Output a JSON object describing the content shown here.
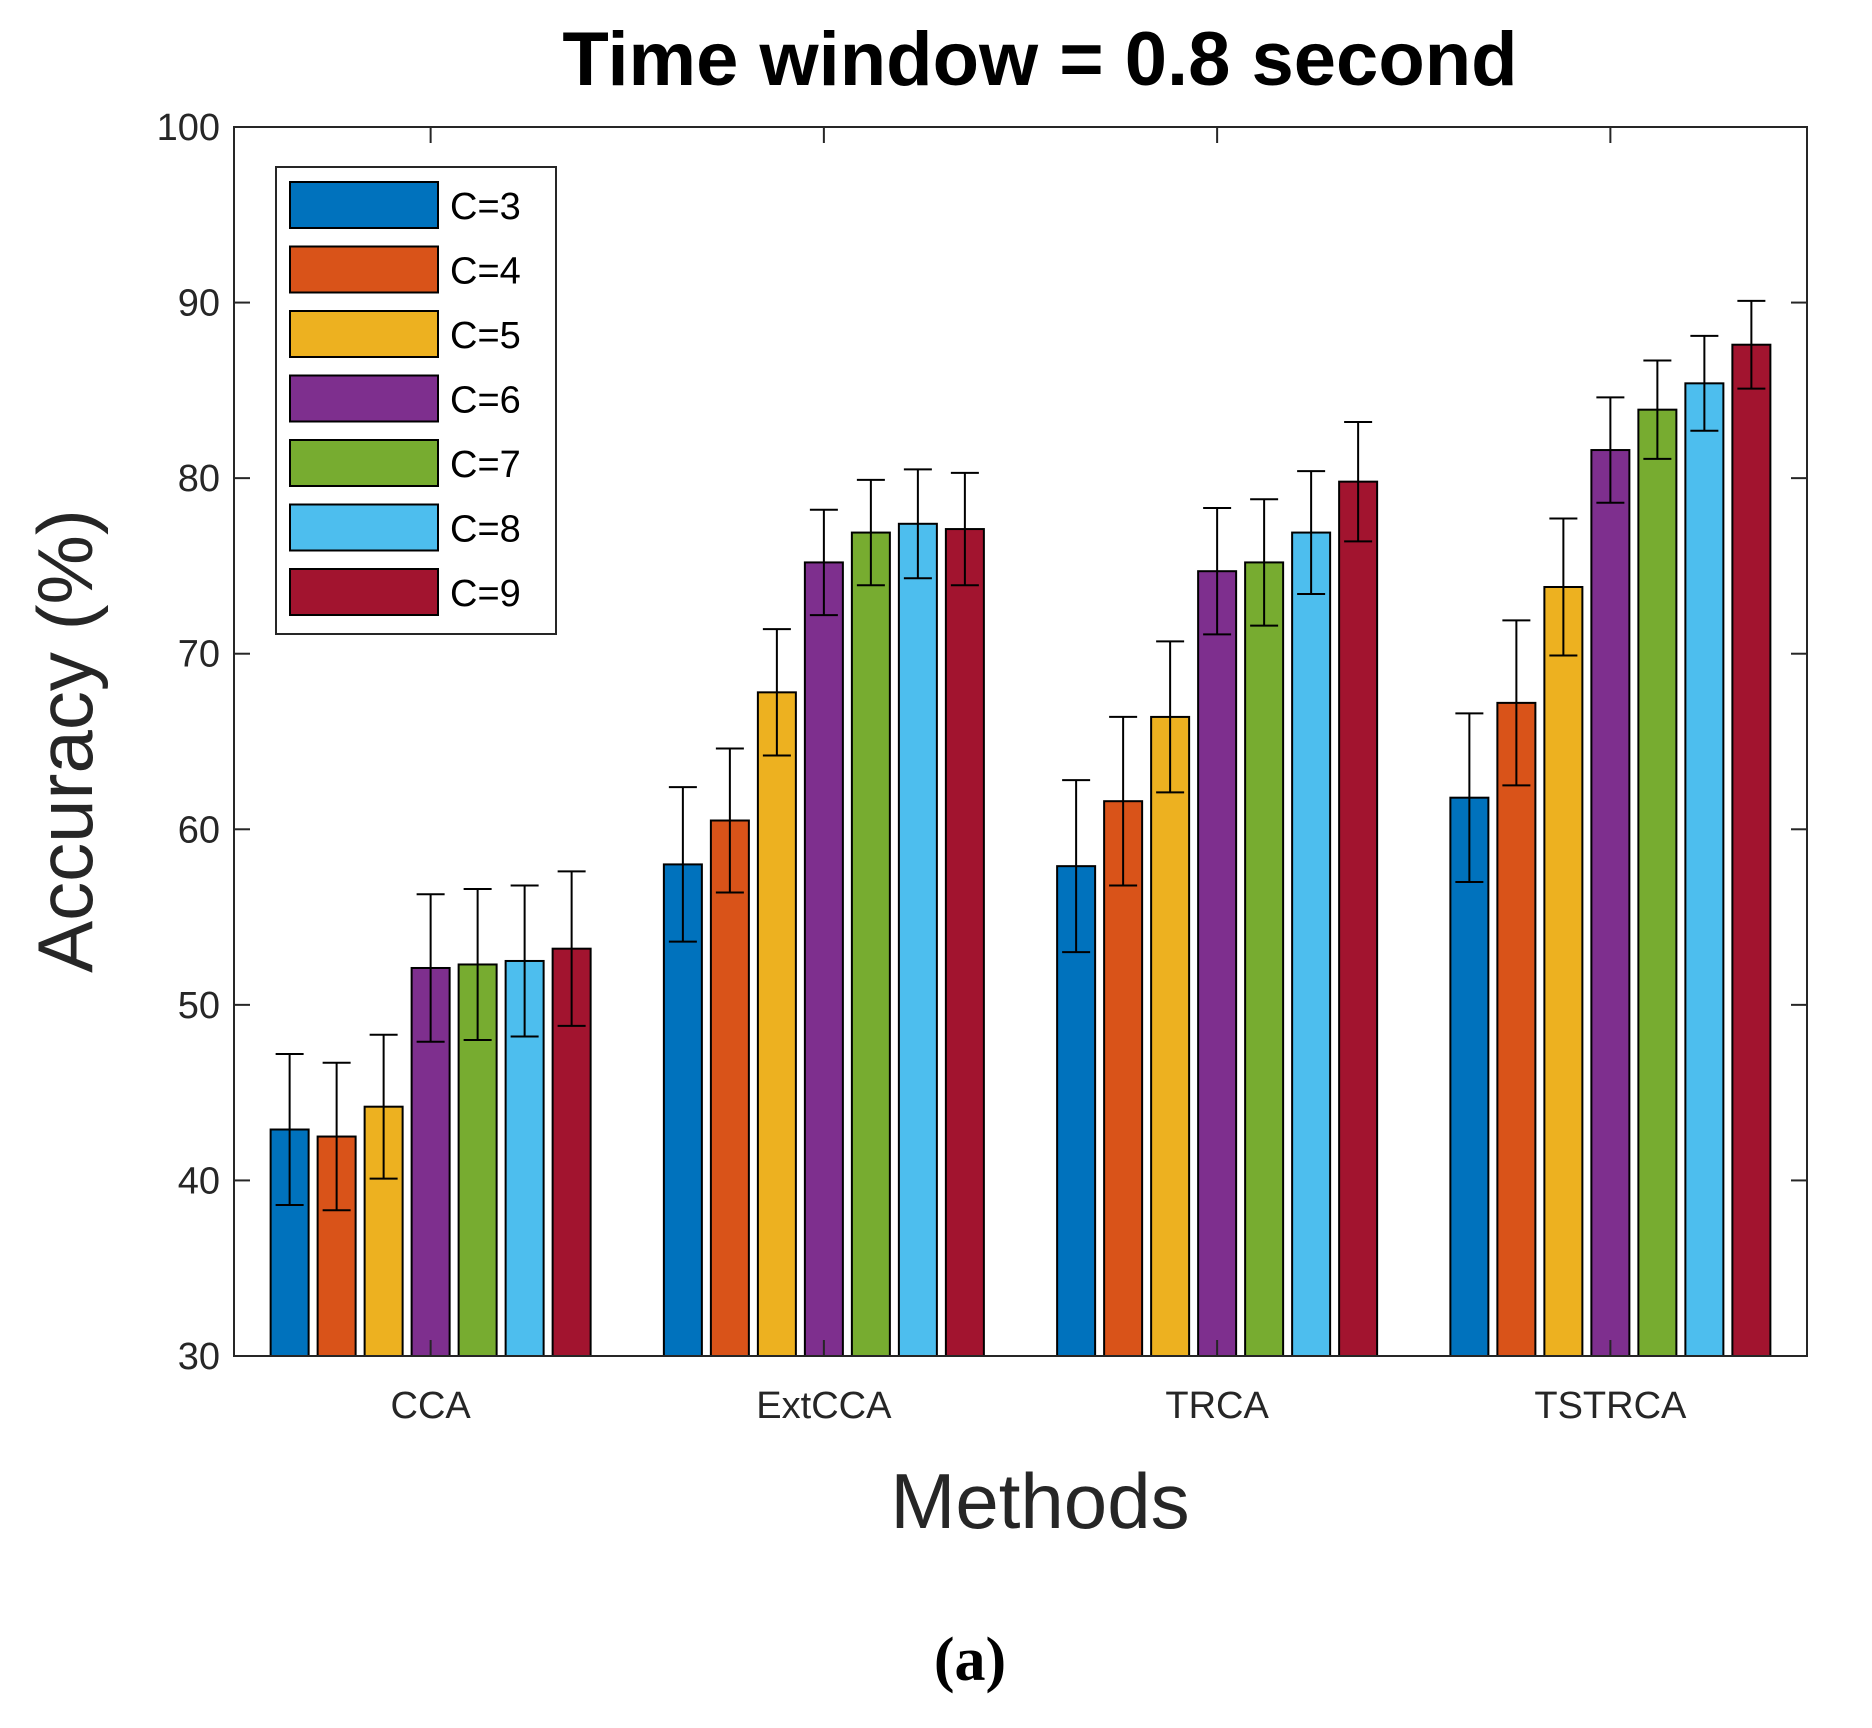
{
  "caption": "(a)",
  "chart_data": {
    "type": "bar",
    "title": "Time window = 0.8 second",
    "xlabel": "Methods",
    "ylabel": "Accuracy (%)",
    "ylim": [
      30,
      100
    ],
    "yticks": [
      "30",
      "40",
      "50",
      "60",
      "70",
      "80",
      "90",
      "100"
    ],
    "grid": false,
    "legend_position": "top-left",
    "categories": [
      "CCA",
      "ExtCCA",
      "TRCA",
      "TSTRCA"
    ],
    "series": [
      {
        "name": "C=3",
        "color": "#0072BD",
        "values": [
          42.9,
          58.0,
          57.9,
          61.8
        ],
        "errors": [
          4.3,
          4.4,
          4.9,
          4.8
        ]
      },
      {
        "name": "C=4",
        "color": "#D95319",
        "values": [
          42.5,
          60.5,
          61.6,
          67.2
        ],
        "errors": [
          4.2,
          4.1,
          4.8,
          4.7
        ]
      },
      {
        "name": "C=5",
        "color": "#EDB120",
        "values": [
          44.2,
          67.8,
          66.4,
          73.8
        ],
        "errors": [
          4.1,
          3.6,
          4.3,
          3.9
        ]
      },
      {
        "name": "C=6",
        "color": "#7E2F8E",
        "values": [
          52.1,
          75.2,
          74.7,
          81.6
        ],
        "errors": [
          4.2,
          3.0,
          3.6,
          3.0
        ]
      },
      {
        "name": "C=7",
        "color": "#77AC30",
        "values": [
          52.3,
          76.9,
          75.2,
          83.9
        ],
        "errors": [
          4.3,
          3.0,
          3.6,
          2.8
        ]
      },
      {
        "name": "C=8",
        "color": "#4DBEEE",
        "values": [
          52.5,
          77.4,
          76.9,
          85.4
        ],
        "errors": [
          4.3,
          3.1,
          3.5,
          2.7
        ]
      },
      {
        "name": "C=9",
        "color": "#A2142F",
        "values": [
          53.2,
          77.1,
          79.8,
          87.6
        ],
        "errors": [
          4.4,
          3.2,
          3.4,
          2.5
        ]
      }
    ]
  }
}
